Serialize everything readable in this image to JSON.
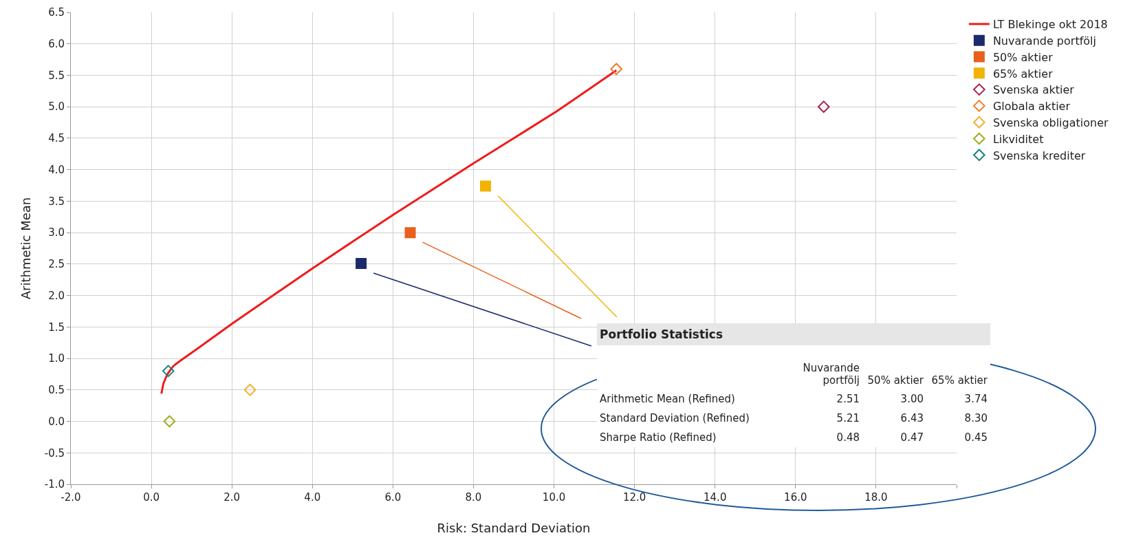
{
  "chart_data": {
    "type": "scatter",
    "xlabel": "Risk: Standard Deviation",
    "ylabel": "Arithmetic Mean",
    "xlim": [
      -2,
      20
    ],
    "xticks": [
      {
        "value": -2,
        "label": "-2.0"
      },
      {
        "value": 0,
        "label": "0.0"
      },
      {
        "value": 2,
        "label": "2.0"
      },
      {
        "value": 4,
        "label": "4.0"
      },
      {
        "value": 6,
        "label": "6.0"
      },
      {
        "value": 8,
        "label": "8.0"
      },
      {
        "value": 10,
        "label": "10.0"
      },
      {
        "value": 12,
        "label": "12.0"
      },
      {
        "value": 14,
        "label": "14.0"
      },
      {
        "value": 16,
        "label": "16.0"
      },
      {
        "value": 18,
        "label": "18.0"
      },
      {
        "value": 20,
        "label": null
      }
    ],
    "ylim": [
      -1,
      6.5
    ],
    "yticks": [
      {
        "value": -1,
        "label": "-1.0"
      },
      {
        "value": -0.5,
        "label": "-0.5"
      },
      {
        "value": 0,
        "label": "0.0"
      },
      {
        "value": 0.5,
        "label": "0.5"
      },
      {
        "value": 1,
        "label": "1.0"
      },
      {
        "value": 1.5,
        "label": "1.5"
      },
      {
        "value": 2,
        "label": "2.0"
      },
      {
        "value": 2.5,
        "label": "2.5"
      },
      {
        "value": 3,
        "label": "3.0"
      },
      {
        "value": 3.5,
        "label": "3.5"
      },
      {
        "value": 4,
        "label": "4.0"
      },
      {
        "value": 4.5,
        "label": "4.5"
      },
      {
        "value": 5,
        "label": "5.0"
      },
      {
        "value": 5.5,
        "label": "5.5"
      },
      {
        "value": 6,
        "label": "6.0"
      },
      {
        "value": 6.5,
        "label": "6.5"
      }
    ],
    "grid": true,
    "legend": "top right",
    "series": [
      {
        "name": "LT Blekinge okt 2018",
        "type": "line",
        "marker": "none",
        "color": "#ee1c1c",
        "x": [
          0.25,
          0.3,
          0.4,
          0.55,
          0.8,
          1.2,
          2,
          4,
          6,
          8,
          10,
          11.55
        ],
        "values": [
          0.44,
          0.6,
          0.75,
          0.88,
          1.0,
          1.18,
          1.55,
          2.43,
          3.28,
          4.1,
          4.9,
          5.58
        ]
      },
      {
        "name": "Nuvarande portfölj",
        "marker": "square",
        "color": "#1b2a6b",
        "x": [
          5.21
        ],
        "values": [
          2.51
        ]
      },
      {
        "name": "50% aktier",
        "marker": "square",
        "color": "#e8601c",
        "x": [
          6.43
        ],
        "values": [
          3.0
        ]
      },
      {
        "name": "65% aktier",
        "marker": "square",
        "color": "#f2b300",
        "x": [
          8.3
        ],
        "values": [
          3.74
        ]
      },
      {
        "name": "Svenska aktier",
        "marker": "diamond",
        "color": "#a3224f",
        "x": [
          16.7
        ],
        "values": [
          5.0
        ]
      },
      {
        "name": "Globala aktier",
        "marker": "diamond",
        "color": "#f07a2a",
        "x": [
          11.55
        ],
        "values": [
          5.6
        ]
      },
      {
        "name": "Svenska obligationer",
        "marker": "diamond",
        "color": "#f0b030",
        "x": [
          2.45
        ],
        "values": [
          0.5
        ]
      },
      {
        "name": "Likviditet",
        "marker": "diamond",
        "color": "#9fb020",
        "x": [
          0.45
        ],
        "values": [
          0.0
        ]
      },
      {
        "name": "Svenska krediter",
        "marker": "diamond",
        "color": "#1a7f80",
        "x": [
          0.42
        ],
        "values": [
          0.8
        ]
      }
    ],
    "annotations": [
      "Portfolio Statistics",
      "Nuvarande portfölj",
      "50% aktier",
      "65% aktier",
      "Arithmetic Mean (Refined)",
      "2.51",
      "3.00",
      "3.74",
      "Standard Deviation (Refined)",
      "5.21",
      "6.43",
      "8.30",
      "Sharpe Ratio (Refined)",
      "0.48",
      "0.47",
      "0.45"
    ]
  }
}
